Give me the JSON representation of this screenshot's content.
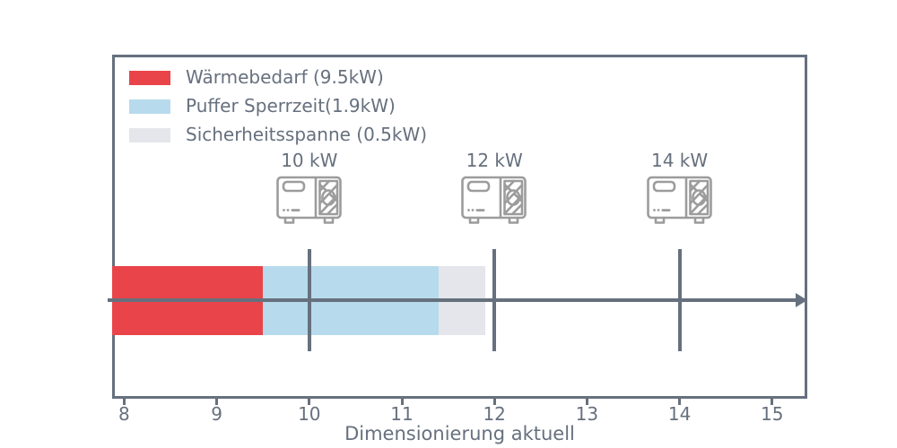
{
  "figure": {
    "background": "#ffffff",
    "frame_color": "#66707E",
    "text_color": "#66707E",
    "icon_color": "#9C9C9C"
  },
  "legend": {
    "items": [
      {
        "label": "Wärmebedarf (9.5kW)",
        "color": "#E94449"
      },
      {
        "label": "Puffer Sperrzeit(1.9kW)",
        "color": "#B7DBEC"
      },
      {
        "label": "Sicherheitsspanne (0.5kW)",
        "color": "#E4E6EB"
      }
    ]
  },
  "chart_data": {
    "type": "bar",
    "orientation": "horizontal",
    "title": "",
    "xlabel": "Dimensionierung aktuell",
    "ylabel": "",
    "xlim": [
      7.87,
      15.38
    ],
    "xticks": [
      8,
      9,
      10,
      11,
      12,
      13,
      14,
      15
    ],
    "grid": false,
    "legend_position": "upper-left",
    "bar_segments": [
      {
        "name": "Wärmebedarf",
        "value_kw": 9.5,
        "start": 7.87,
        "end": 9.5,
        "color": "#E94449"
      },
      {
        "name": "Puffer Sperrzeit",
        "value_kw": 1.9,
        "start": 9.5,
        "end": 11.4,
        "color": "#B7DBEC"
      },
      {
        "name": "Sicherheitsspanne",
        "value_kw": 0.5,
        "start": 11.4,
        "end": 11.9,
        "color": "#E4E6EB"
      }
    ],
    "pump_options": [
      {
        "label": "10 kW",
        "x": 10
      },
      {
        "label": "12 kW",
        "x": 12
      },
      {
        "label": "14 kW",
        "x": 14
      }
    ],
    "axis_arrow": {
      "y_value": "bar-center",
      "direction": "right"
    }
  }
}
